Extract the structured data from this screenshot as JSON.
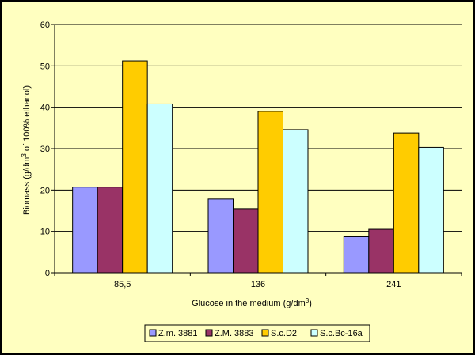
{
  "chart_data": {
    "type": "bar",
    "categories": [
      "85,5",
      "136",
      "241"
    ],
    "series": [
      {
        "name": "Z.m. 3881",
        "values": [
          20.7,
          17.8,
          8.7
        ],
        "color": "#9999FF"
      },
      {
        "name": "Z.M. 3883",
        "values": [
          20.7,
          15.5,
          10.5
        ],
        "color": "#993366"
      },
      {
        "name": "S.c.D2",
        "values": [
          51.2,
          39.0,
          33.8
        ],
        "color": "#FFCC00"
      },
      {
        "name": "S.c.Bc-16a",
        "values": [
          40.8,
          34.6,
          30.3
        ],
        "color": "#CCFFFF"
      }
    ],
    "xlabel_main": "Glucose in the medium (g/dm",
    "xlabel_sup": "3",
    "xlabel_end": ")",
    "ylabel_main": "Biomass (g/dm",
    "ylabel_sup": "3",
    "ylabel_end": " of 100% ethanol)",
    "yticks": [
      "0",
      "10",
      "20",
      "30",
      "40",
      "50",
      "60"
    ],
    "ylim": [
      0,
      60
    ],
    "grid": true,
    "legend_position": "bottom",
    "colors": {
      "background": "#FFFFC0",
      "frame": "#000000",
      "plot_area": "#FFFFC0"
    }
  }
}
